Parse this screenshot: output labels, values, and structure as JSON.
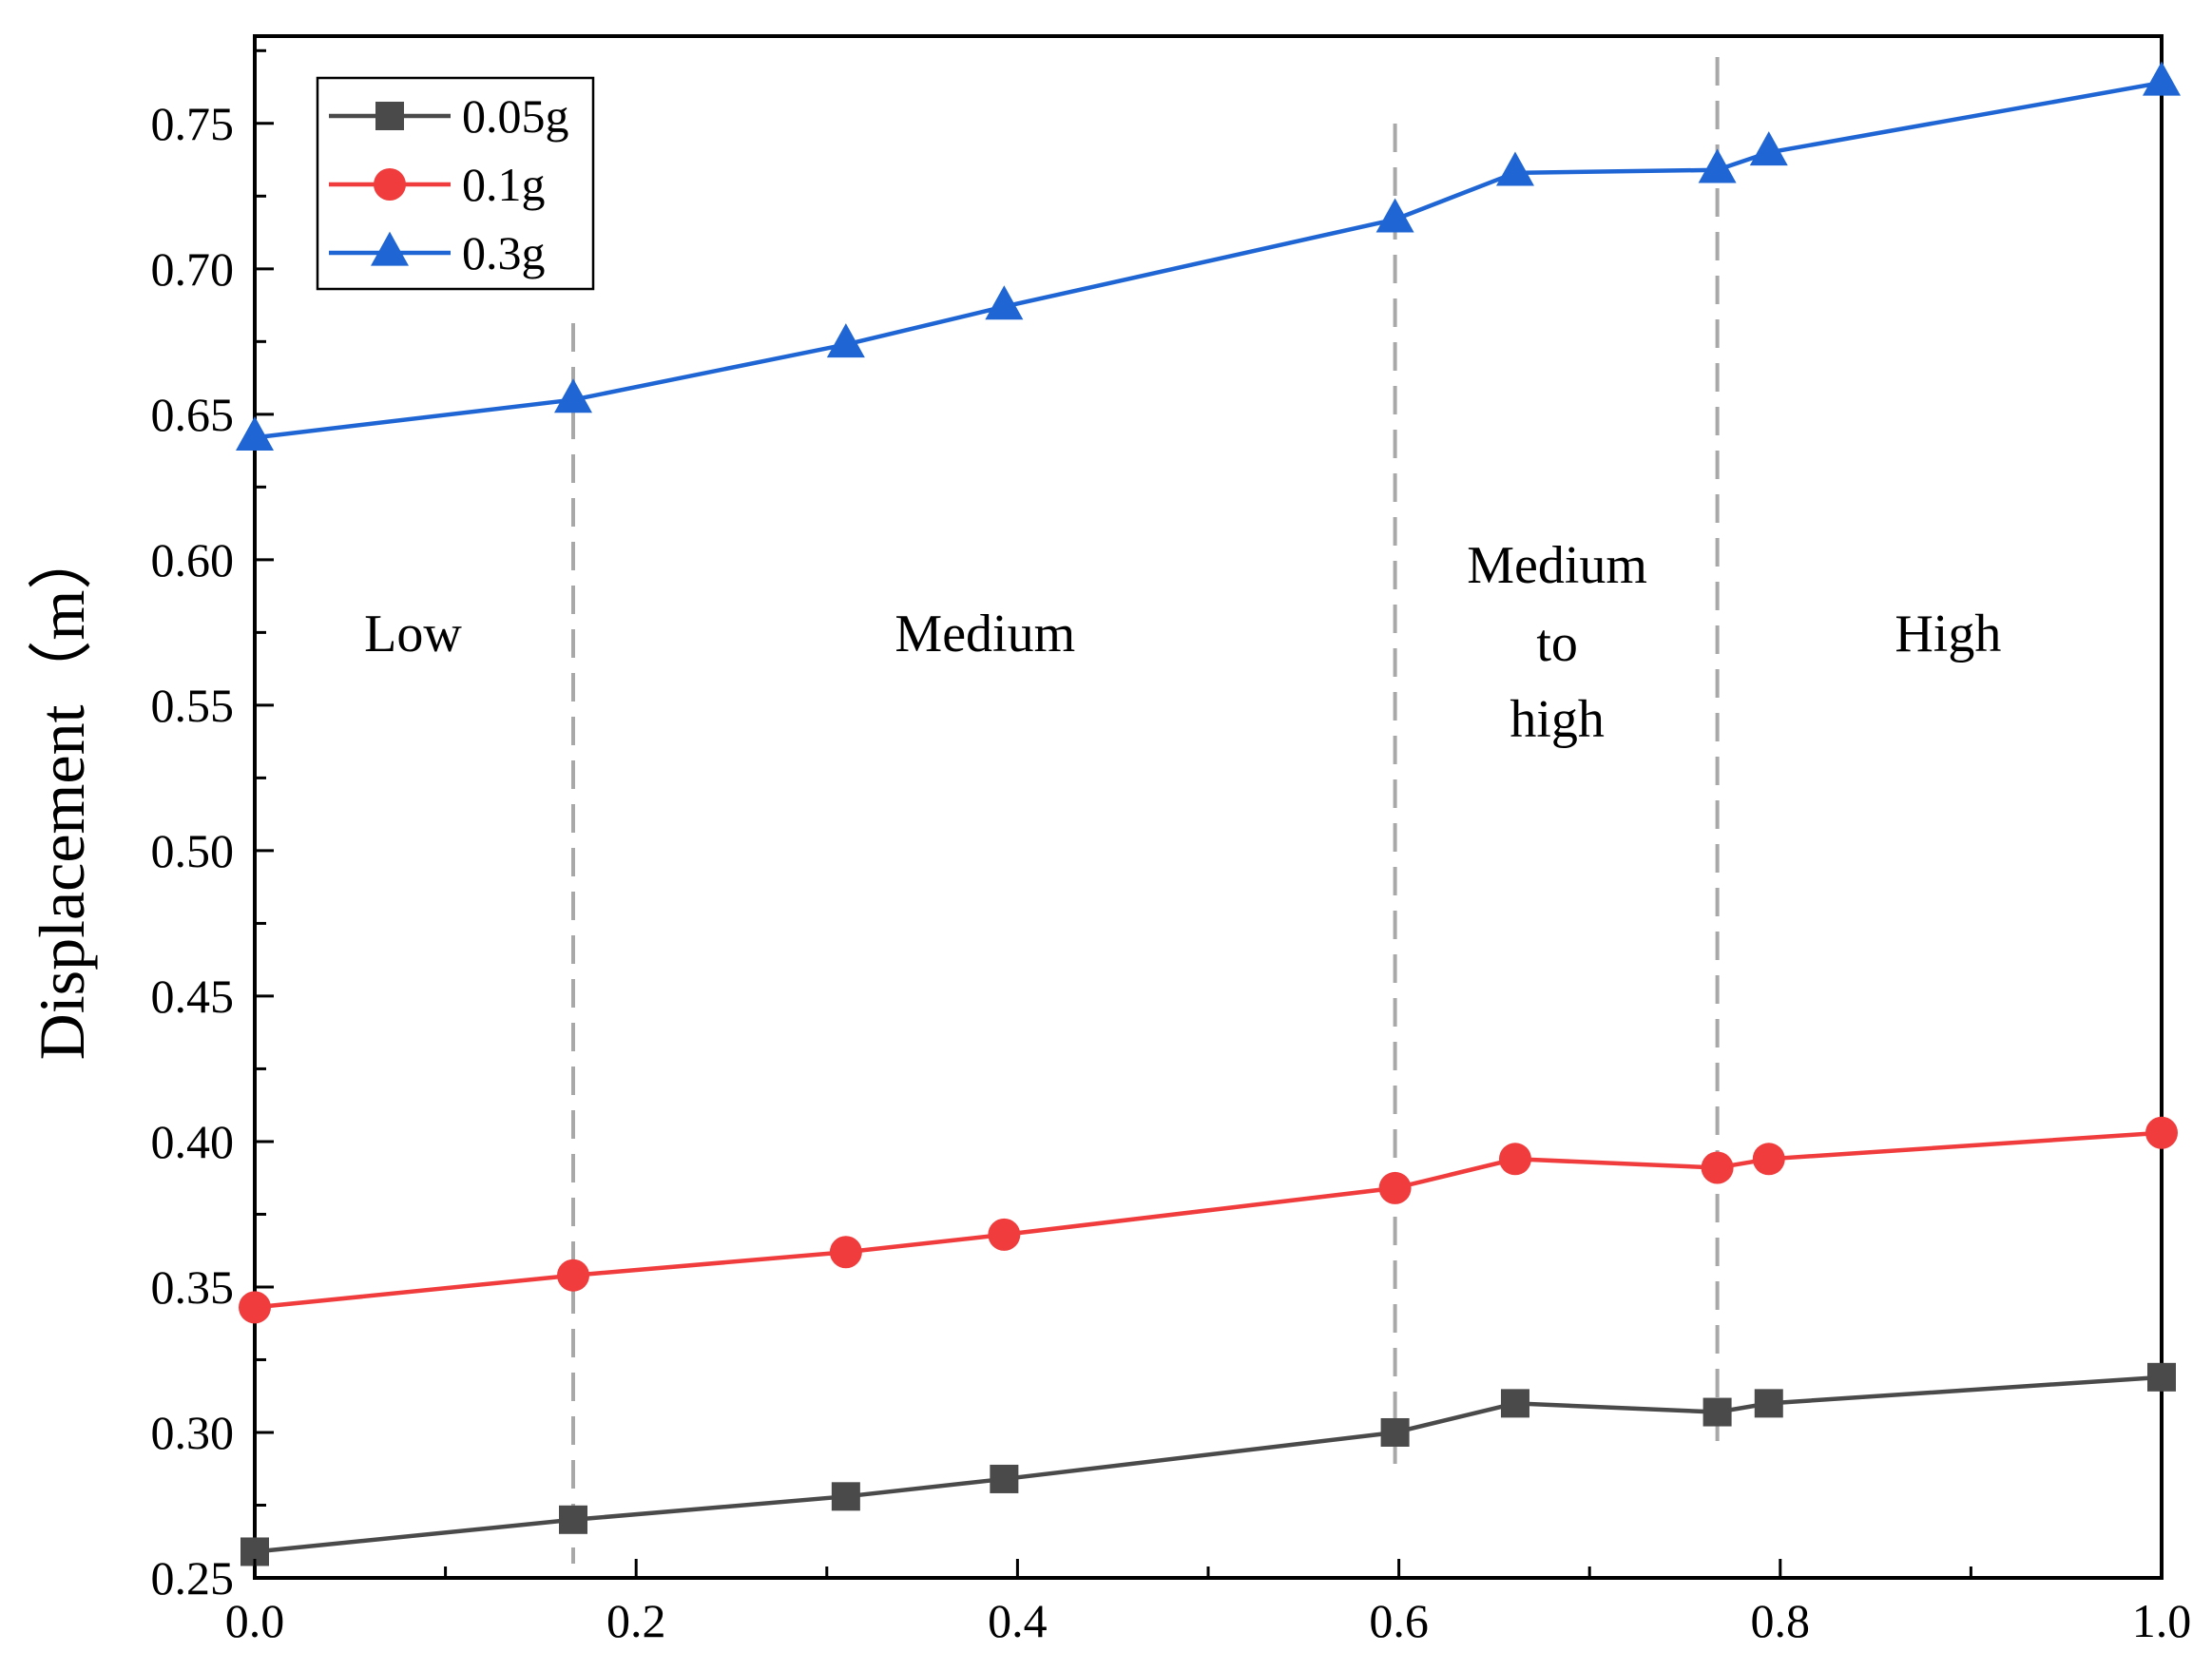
{
  "chart_data": {
    "type": "line",
    "title": "",
    "xlabel": "",
    "ylabel": "Displacement（m）",
    "xlim": [
      0.0,
      1.0
    ],
    "ylim": [
      0.25,
      0.78
    ],
    "x_ticks": [
      "0.0",
      "0.2",
      "0.4",
      "0.6",
      "0.8",
      "1.0"
    ],
    "y_ticks": [
      "0.25",
      "0.30",
      "0.35",
      "0.40",
      "0.45",
      "0.50",
      "0.55",
      "0.60",
      "0.65",
      "0.70",
      "0.75"
    ],
    "grid": false,
    "legend_position": "top-left",
    "x": [
      0.0,
      0.167,
      0.31,
      0.393,
      0.598,
      0.661,
      0.767,
      0.794,
      1.0
    ],
    "series": [
      {
        "name": "0.05g",
        "color": "#4a4a4a",
        "marker": "square",
        "values": [
          0.259,
          0.27,
          0.278,
          0.284,
          0.3,
          0.31,
          0.307,
          0.31,
          0.319
        ]
      },
      {
        "name": "0.1g",
        "color": "#f03c3c",
        "marker": "circle",
        "values": [
          0.343,
          0.354,
          0.362,
          0.368,
          0.384,
          0.394,
          0.391,
          0.394,
          0.403
        ]
      },
      {
        "name": "0.3g",
        "color": "#1f66d4",
        "marker": "triangle",
        "values": [
          0.642,
          0.655,
          0.674,
          0.687,
          0.717,
          0.733,
          0.734,
          0.74,
          0.764
        ]
      }
    ],
    "divider_lines": [
      0.167,
      0.598,
      0.767
    ],
    "regions": [
      {
        "label_lines": [
          "Low"
        ],
        "x_center": 0.083
      },
      {
        "label_lines": [
          "Medium"
        ],
        "x_center": 0.383
      },
      {
        "label_lines": [
          "Medium",
          "to",
          "high"
        ],
        "x_center": 0.683
      },
      {
        "label_lines": [
          "High"
        ],
        "x_center": 0.888
      }
    ]
  }
}
